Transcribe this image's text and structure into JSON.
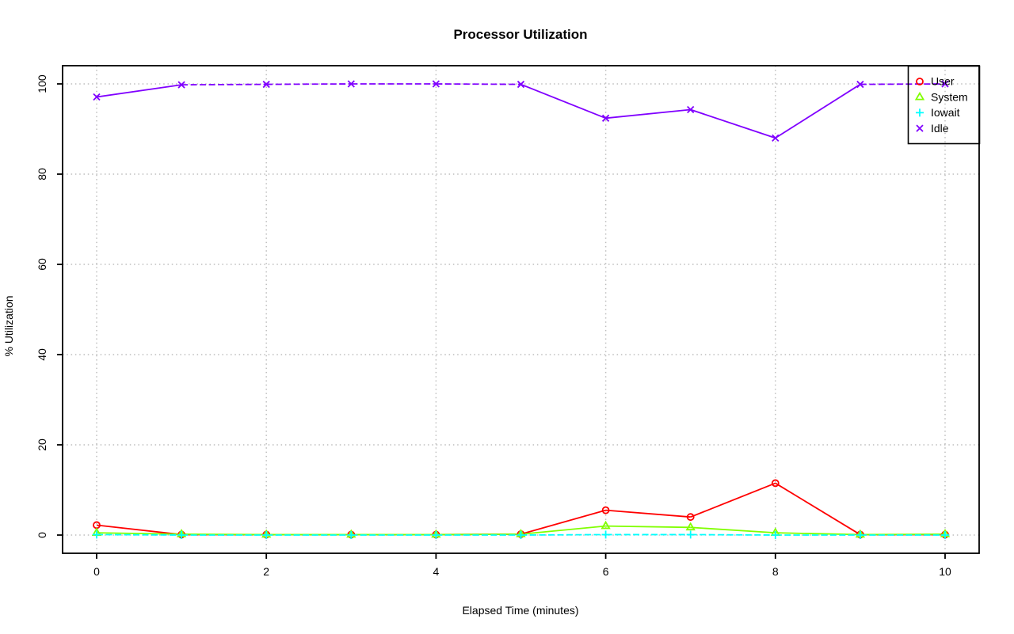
{
  "chart_data": {
    "type": "line",
    "title": "Processor Utilization",
    "xlabel": "Elapsed Time (minutes)",
    "ylabel": "% Utilization",
    "x": [
      0,
      1,
      2,
      3,
      4,
      5,
      6,
      7,
      8,
      9,
      10
    ],
    "x_ticks": [
      0,
      2,
      4,
      6,
      8,
      10
    ],
    "y_ticks": [
      0,
      20,
      40,
      60,
      80,
      100
    ],
    "xlim": [
      0,
      10
    ],
    "ylim": [
      0,
      100
    ],
    "grid": "dotted",
    "grid_color": "#BEBEBE",
    "axis_color": "#000000",
    "legend_position": "topright",
    "series": [
      {
        "name": "User",
        "color": "#FF0000",
        "marker": "circle",
        "line_style": "solid",
        "values": [
          2.2,
          0.1,
          0.1,
          0.1,
          0.1,
          0.2,
          5.5,
          4.0,
          11.5,
          0.1,
          0.1
        ]
      },
      {
        "name": "System",
        "color": "#80FF00",
        "marker": "triangle",
        "line_style": "solid",
        "values": [
          0.5,
          0.2,
          0.1,
          0.1,
          0.1,
          0.2,
          2.0,
          1.7,
          0.5,
          0.1,
          0.2
        ]
      },
      {
        "name": "Iowait",
        "color": "#00FFFF",
        "marker": "plus",
        "line_style": "dashed",
        "values": [
          0.1,
          0.0,
          0.0,
          0.0,
          0.0,
          0.0,
          0.1,
          0.1,
          0.0,
          0.0,
          0.0
        ]
      },
      {
        "name": "Idle",
        "color": "#8000FF",
        "marker": "x",
        "line_style": "dashed_at_top",
        "values": [
          97.1,
          99.8,
          99.9,
          100,
          100,
          99.9,
          92.4,
          94.3,
          88.0,
          99.9,
          100
        ]
      }
    ]
  }
}
